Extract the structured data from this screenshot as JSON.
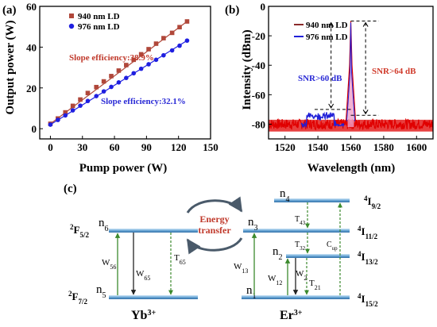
{
  "chart_data": [
    {
      "type": "scatter",
      "panel_label": "(a)",
      "xlabel": "Pump power (W)",
      "ylabel": "Output power (W)",
      "xlim": [
        -10,
        150
      ],
      "ylim": [
        -5,
        60
      ],
      "xticks": [
        "0",
        "30",
        "60",
        "90",
        "120",
        "150"
      ],
      "yticks": [
        "0",
        "20",
        "40",
        "60"
      ],
      "grid": false,
      "legend": "top-left",
      "series": [
        {
          "name": "940 nm LD",
          "color": "#b0473a",
          "marker": "square",
          "x": [
            0,
            7,
            14,
            21,
            28,
            35,
            43,
            50,
            57,
            64,
            71,
            78,
            85,
            92,
            99,
            106,
            114,
            121,
            128
          ],
          "y": [
            2.4,
            5.0,
            8.0,
            11.2,
            14.3,
            17.5,
            20.4,
            23.2,
            25.8,
            28.5,
            31.2,
            33.8,
            36.5,
            39.0,
            41.7,
            44.4,
            47.0,
            49.8,
            52.6
          ],
          "annotation": "Slope efficiency:38.9%",
          "annotation_color": "#c0392b"
        },
        {
          "name": "976 nm LD",
          "color": "#1f1fe0",
          "marker": "circle",
          "x": [
            0,
            7,
            14,
            21,
            28,
            35,
            43,
            50,
            57,
            64,
            71,
            78,
            85,
            92,
            99,
            106,
            114,
            121,
            128
          ],
          "y": [
            2.0,
            4.3,
            6.5,
            9.0,
            11.3,
            13.6,
            16.0,
            18.3,
            20.5,
            22.7,
            24.9,
            27.2,
            29.4,
            31.6,
            33.8,
            36.0,
            38.4,
            40.7,
            43.2
          ],
          "annotation": "Slope efficiency:32.1%",
          "annotation_color": "#2a2ad6"
        }
      ]
    },
    {
      "type": "line",
      "panel_label": "(b)",
      "xlabel": "Wavelength (nm)",
      "ylabel": "Intensity (dBm)",
      "xlim": [
        1510,
        1610
      ],
      "ylim": [
        -90,
        0
      ],
      "xticks": [
        "1520",
        "1540",
        "1560",
        "1580",
        "1600"
      ],
      "yticks": [
        "-80",
        "-60",
        "-40",
        "-20",
        "0"
      ],
      "grid": false,
      "legend": "top-left",
      "series": [
        {
          "name": "940 nm LD",
          "color": "#e00000",
          "peak_x": 1560,
          "peak_y": -10,
          "floor_y": -80
        },
        {
          "name": "976 nm LD",
          "color": "#2020d8",
          "peak_x": 1560,
          "peak_y": -10,
          "floor_y": -80
        }
      ],
      "annotations": [
        {
          "text": "SNR>60 dB",
          "color": "#2a2ad6"
        },
        {
          "text": "SNR>64 dB",
          "color": "#d03a2a"
        }
      ]
    }
  ],
  "diagram": {
    "panel_label": "(c)",
    "yb": {
      "ion": "Yb",
      "charge": "3+",
      "levels": [
        {
          "term": "2",
          "sym": "F",
          "sub": "5/2",
          "node": "n",
          "node_sub": "6"
        },
        {
          "term": "2",
          "sym": "F",
          "sub": "7/2",
          "node": "n",
          "node_sub": "5"
        }
      ],
      "transitions": [
        {
          "sym": "W",
          "sub": "56"
        },
        {
          "sym": "W",
          "sub": "65"
        },
        {
          "sym": "T",
          "sub": "65"
        }
      ]
    },
    "energy_transfer": [
      "Energy",
      "transfer"
    ],
    "er": {
      "ion": "Er",
      "charge": "3+",
      "levels": [
        {
          "term": "4",
          "sym": "I",
          "sub": "9/2",
          "node": "n",
          "node_sub": "4"
        },
        {
          "term": "4",
          "sym": "I",
          "sub": "11/2",
          "node": "n",
          "node_sub": "3"
        },
        {
          "term": "4",
          "sym": "I",
          "sub": "13/2",
          "node": "n",
          "node_sub": "2"
        },
        {
          "term": "4",
          "sym": "I",
          "sub": "15/2",
          "node": "n",
          "node_sub": "1"
        }
      ],
      "transitions": [
        {
          "sym": "T",
          "sub": "43"
        },
        {
          "sym": "T",
          "sub": "32"
        },
        {
          "sym": "C",
          "sub": "up"
        },
        {
          "sym": "W",
          "sub": "13"
        },
        {
          "sym": "W",
          "sub": "12"
        },
        {
          "sym": "W",
          "sub": "2"
        },
        {
          "sym": "T",
          "sub": "21"
        }
      ]
    }
  }
}
